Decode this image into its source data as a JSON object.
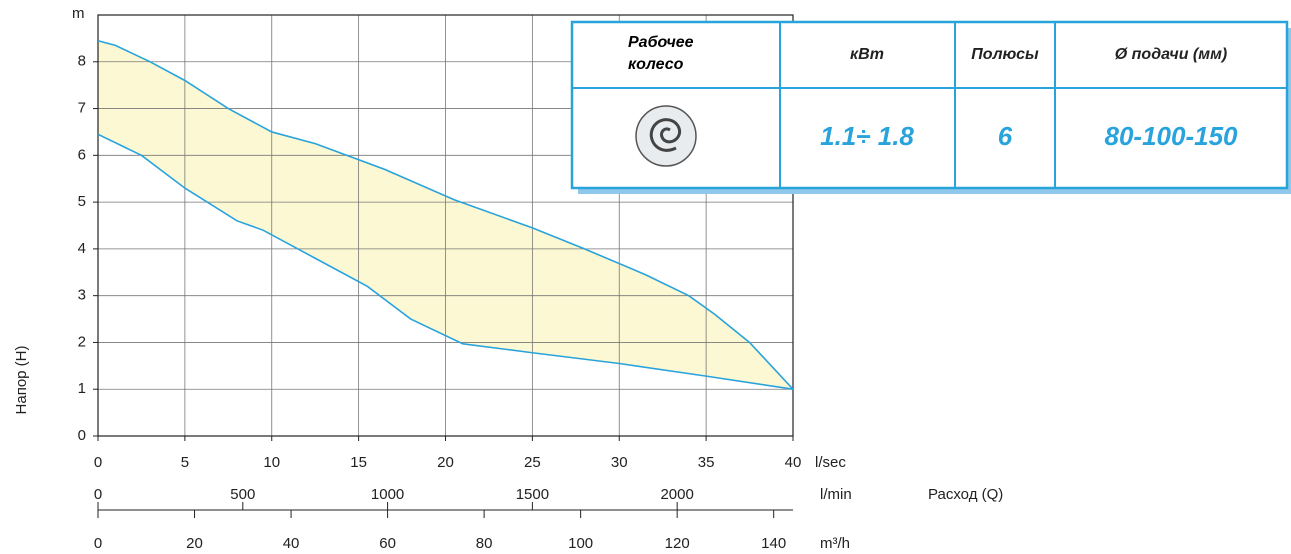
{
  "chart_data": {
    "type": "range",
    "x_unit": "l/sec",
    "y_unit": "m",
    "y_label": "Напор (H)",
    "x_label": "Расход (Q)",
    "xlim": [
      0,
      40
    ],
    "xticks": [
      0,
      5,
      10,
      15,
      20,
      25,
      30,
      35,
      40
    ],
    "ylim": [
      0,
      9
    ],
    "yticks": [
      0,
      1,
      2,
      3,
      4,
      5,
      6,
      7,
      8
    ],
    "x2_unit": "l/min",
    "x2lim": [
      0,
      2400
    ],
    "x2ticks": [
      0,
      500,
      1000,
      1500,
      2000
    ],
    "x3_unit": "m³/h",
    "x3lim": [
      0,
      144
    ],
    "x3ticks": [
      0,
      20,
      40,
      60,
      80,
      100,
      120,
      140
    ],
    "grid": true,
    "fill_color": "#fdf8d4",
    "series": [
      {
        "color": "#29a3dc",
        "x": [
          0,
          1,
          3,
          5,
          7.5,
          10,
          12.5,
          16.5,
          20.5,
          25,
          28,
          31.5,
          34,
          35.5,
          37.5,
          40
        ],
        "values": [
          8.45,
          8.35,
          8.0,
          7.6,
          7.0,
          6.5,
          6.25,
          5.7,
          5.05,
          4.45,
          4.0,
          3.45,
          3.0,
          2.6,
          2.0,
          1.0
        ]
      },
      {
        "color": "#29a3dc",
        "x": [
          0,
          2.5,
          5,
          8,
          9.5,
          12.5,
          15.5,
          18,
          21,
          25,
          30,
          35,
          40
        ],
        "values": [
          6.45,
          6.0,
          5.3,
          4.6,
          4.4,
          3.8,
          3.2,
          2.5,
          1.97,
          1.78,
          1.55,
          1.28,
          1.0
        ]
      }
    ]
  },
  "table": {
    "headers": [
      "Рабочее колесо",
      "кВт",
      "Полюсы",
      "Ø подачи (мм)"
    ],
    "row": [
      "1.1÷ 1.8",
      "6",
      "80-100-150"
    ]
  }
}
